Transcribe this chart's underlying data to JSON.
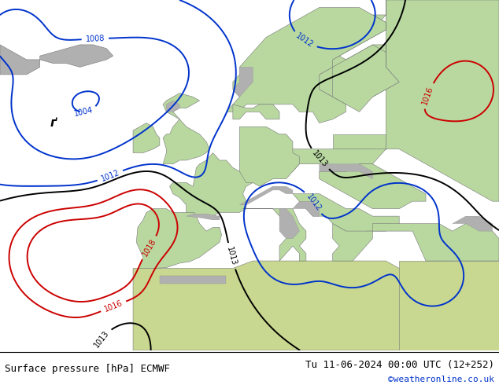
{
  "title_left": "Surface pressure [hPa] ECMWF",
  "title_right": "Tu 11-06-2024 00:00 UTC (12+252)",
  "copyright": "©weatheronline.co.uk",
  "bg_ocean": "#dcdcdc",
  "bg_land_green": "#b8d8a0",
  "bg_land_gray": "#b0b0b0",
  "contour_black": "#000000",
  "contour_red": "#cc0000",
  "contour_blue": "#0033cc",
  "footer_fontsize": 9,
  "copyright_color": "#0033cc",
  "figsize": [
    6.34,
    4.9
  ],
  "dpi": 100,
  "background_color": "#ffffff"
}
